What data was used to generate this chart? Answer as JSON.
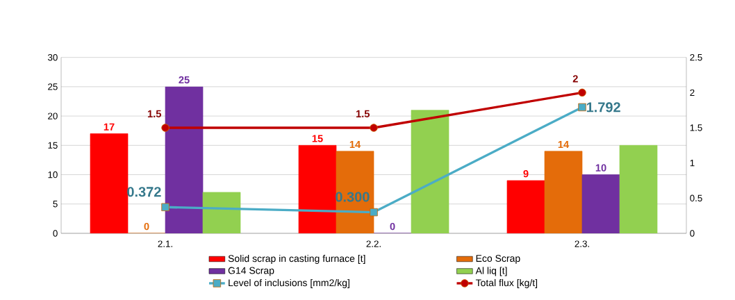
{
  "chart_data": {
    "type": "bar",
    "categories": [
      "2.1.",
      "2.2.",
      "2.3."
    ],
    "series": [
      {
        "name": "Solid scrap in casting furnace [t]",
        "color": "#ff0000",
        "values": [
          17,
          15,
          9
        ],
        "value_labels": [
          "17",
          "15",
          "9"
        ]
      },
      {
        "name": "Eco Scrap",
        "color": "#e46c0a",
        "values": [
          0,
          14,
          14
        ],
        "value_labels": [
          "0",
          "14",
          "14"
        ]
      },
      {
        "name": "G14 Scrap",
        "color": "#7030a0",
        "values": [
          25,
          0,
          10
        ],
        "value_labels": [
          "25",
          "0",
          "10"
        ]
      },
      {
        "name": "Al liq [t]",
        "color": "#92d050",
        "values": [
          7,
          21,
          15
        ]
      },
      {
        "name": "Level of inclusions [mm2/kg]",
        "type": "line",
        "axis": "y2",
        "marker": "square",
        "color": "#4bacc6",
        "values": [
          0.372,
          0.3,
          1.792
        ],
        "value_labels": [
          "0.372",
          "0.300",
          "1.792"
        ]
      },
      {
        "name": "Total flux [kg/t]",
        "type": "line",
        "axis": "y2",
        "marker": "circle",
        "color": "#c00000",
        "values": [
          1.5,
          1.5,
          2
        ],
        "value_labels": [
          "1.5",
          "1.5",
          "2"
        ]
      }
    ],
    "ylim": [
      0,
      30
    ],
    "yticks": [
      0,
      5,
      10,
      15,
      20,
      25,
      30
    ],
    "y2lim": [
      0,
      2.5
    ],
    "y2ticks": [
      0,
      0.5,
      1,
      1.5,
      2,
      2.5
    ],
    "grid": "y",
    "legend": "bottom"
  }
}
